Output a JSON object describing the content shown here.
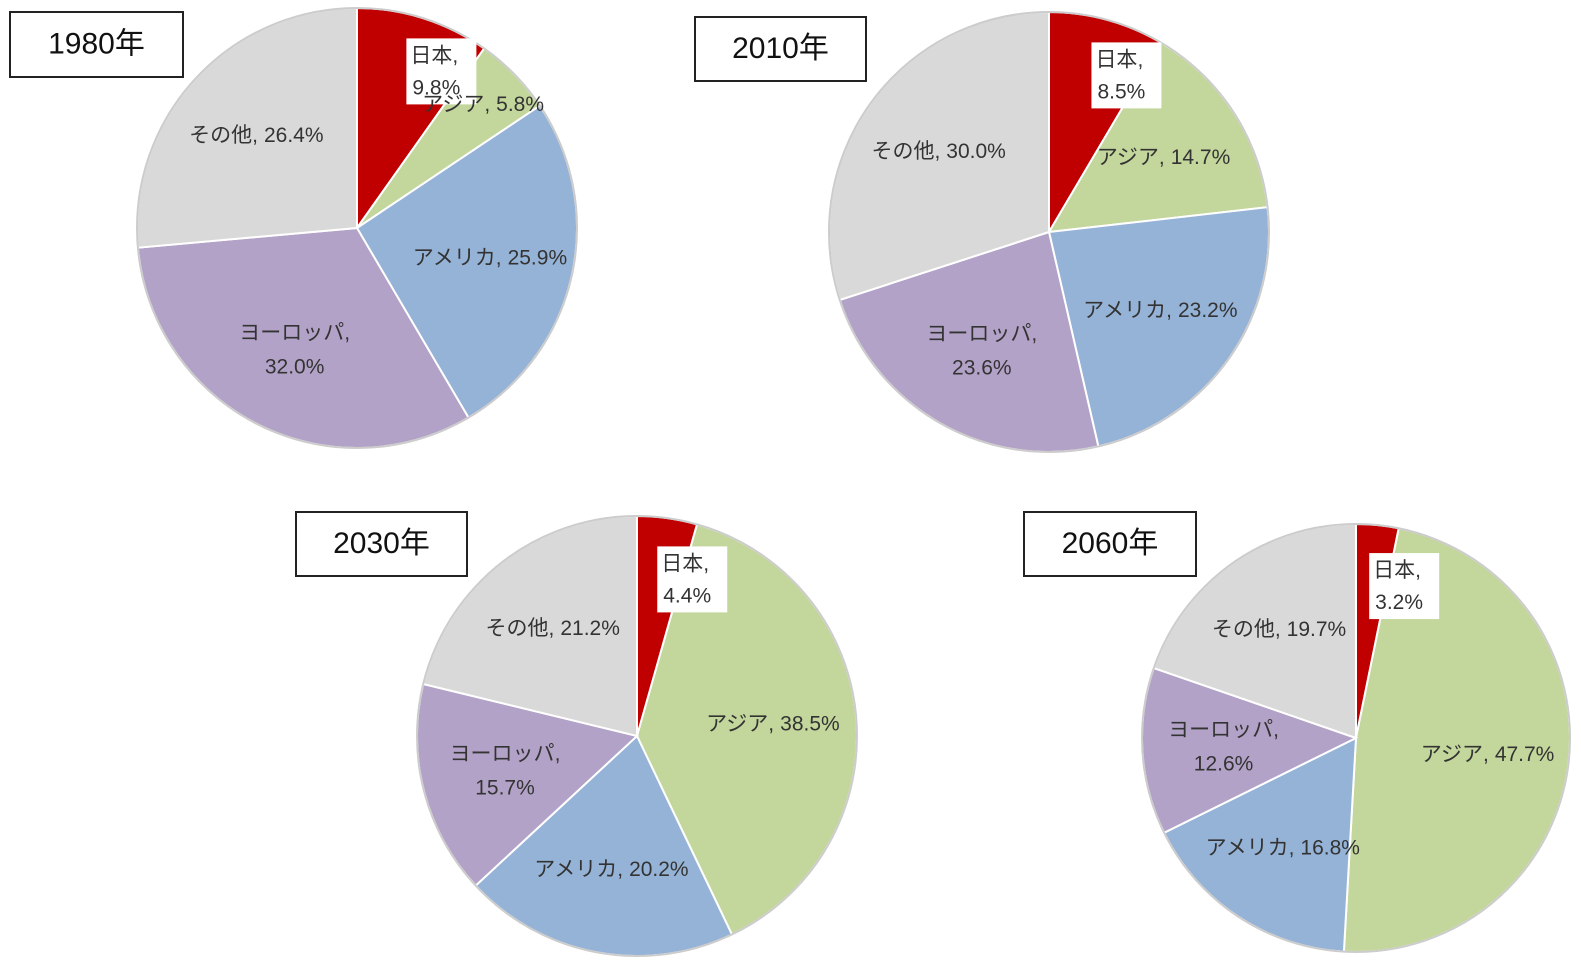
{
  "chart_data": [
    {
      "type": "pie",
      "title": "1980年",
      "label_separator": ",",
      "categories": [
        "日本",
        "アジア",
        "アメリカ",
        "ヨーロッパ",
        "その他"
      ],
      "values": [
        9.8,
        5.8,
        25.9,
        32.0,
        26.4
      ],
      "value_labels": [
        "9.8%",
        "5.8%",
        "25.9%",
        "32.0%",
        "26.4%"
      ],
      "colors": [
        "#c00000",
        "#c3d69b",
        "#95b3d7",
        "#b3a2c7",
        "#d9d9d9"
      ]
    },
    {
      "type": "pie",
      "title": "2010年",
      "label_separator": ",",
      "categories": [
        "日本",
        "アジア",
        "アメリカ",
        "ヨーロッパ",
        "その他"
      ],
      "values": [
        8.5,
        14.7,
        23.2,
        23.6,
        30.0
      ],
      "value_labels": [
        "8.5%",
        "14.7%",
        "23.2%",
        "23.6%",
        "30.0%"
      ],
      "colors": [
        "#c00000",
        "#c3d69b",
        "#95b3d7",
        "#b3a2c7",
        "#d9d9d9"
      ]
    },
    {
      "type": "pie",
      "title": "2030年",
      "label_separator": ",",
      "categories": [
        "日本",
        "アジア",
        "アメリカ",
        "ヨーロッパ",
        "その他"
      ],
      "values": [
        4.4,
        38.5,
        20.2,
        15.7,
        21.2
      ],
      "value_labels": [
        "4.4%",
        "38.5%",
        "20.2%",
        "15.7%",
        "21.2%"
      ],
      "colors": [
        "#c00000",
        "#c3d69b",
        "#95b3d7",
        "#b3a2c7",
        "#d9d9d9"
      ]
    },
    {
      "type": "pie",
      "title": "2060年",
      "label_separator": ",",
      "categories": [
        "日本",
        "アジア",
        "アメリカ",
        "ヨーロッパ",
        "その他"
      ],
      "values": [
        3.2,
        47.7,
        16.8,
        12.6,
        19.7
      ],
      "value_labels": [
        "3.2%",
        "47.7%",
        "16.8%",
        "12.6%",
        "19.7%"
      ],
      "colors": [
        "#c00000",
        "#c3d69b",
        "#95b3d7",
        "#b3a2c7",
        "#d9d9d9"
      ]
    }
  ]
}
